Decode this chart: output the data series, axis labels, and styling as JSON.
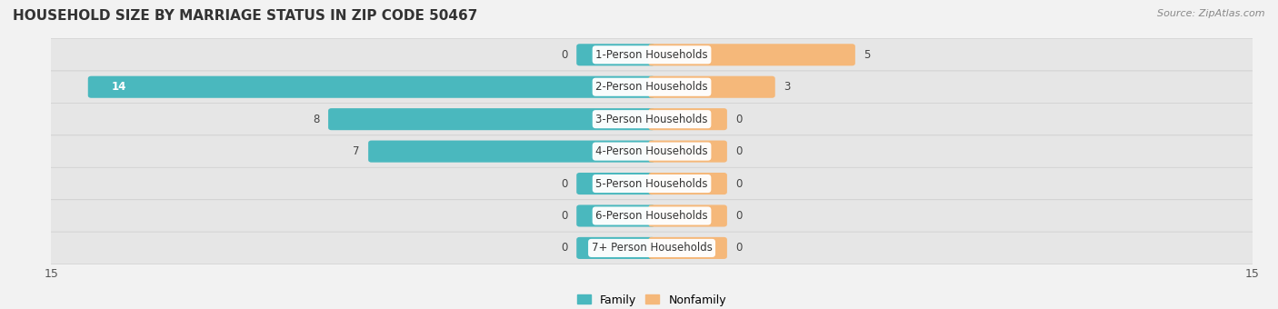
{
  "title": "HOUSEHOLD SIZE BY MARRIAGE STATUS IN ZIP CODE 50467",
  "source": "Source: ZipAtlas.com",
  "categories": [
    "1-Person Households",
    "2-Person Households",
    "3-Person Households",
    "4-Person Households",
    "5-Person Households",
    "6-Person Households",
    "7+ Person Households"
  ],
  "family": [
    0,
    14,
    8,
    7,
    0,
    0,
    0
  ],
  "nonfamily": [
    5,
    3,
    0,
    0,
    0,
    0,
    0
  ],
  "family_color": "#4ab8be",
  "nonfamily_color": "#f5b87a",
  "xlim": [
    -15,
    15
  ],
  "bar_height": 0.52,
  "bg_color": "#f2f2f2",
  "row_bg_color": "#e6e6e6",
  "label_bg_color": "#ffffff",
  "title_fontsize": 11,
  "source_fontsize": 8,
  "tick_fontsize": 9,
  "label_fontsize": 8.5,
  "value_fontsize": 8.5,
  "zero_stub": 1.8
}
